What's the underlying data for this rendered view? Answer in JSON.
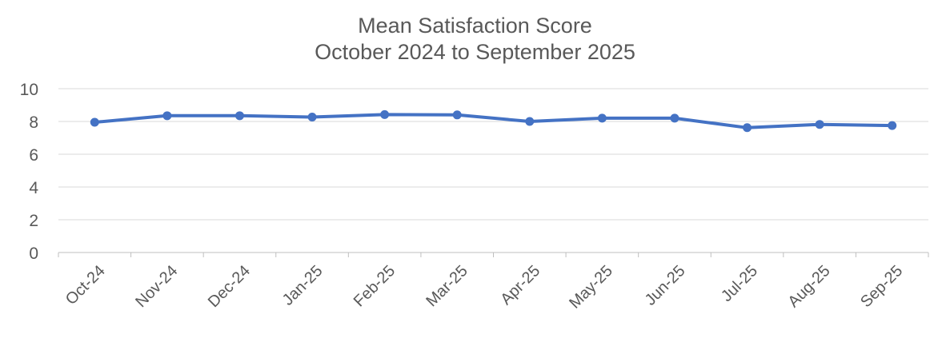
{
  "chart_data": {
    "type": "line",
    "title": "Mean Satisfaction Score",
    "subtitle": "October 2024 to September 2025",
    "xlabel": "",
    "ylabel": "",
    "categories": [
      "Oct-24",
      "Nov-24",
      "Dec-24",
      "Jan-25",
      "Feb-25",
      "Mar-25",
      "Apr-25",
      "May-25",
      "Jun-25",
      "Jul-25",
      "Aug-25",
      "Sep-25"
    ],
    "series": [
      {
        "values": [
          7.95,
          8.35,
          8.35,
          8.27,
          8.42,
          8.4,
          8.0,
          8.2,
          8.2,
          7.62,
          7.82,
          7.75
        ]
      }
    ],
    "ylim": [
      0,
      10
    ],
    "yticks": [
      "0",
      "2",
      "4",
      "6",
      "8",
      "10"
    ],
    "grid": true,
    "legend": "none",
    "colors": {
      "line": "#4472C4",
      "grid": "#D9D9D9",
      "axis": "#BFBFBF",
      "text": "#595959"
    }
  }
}
